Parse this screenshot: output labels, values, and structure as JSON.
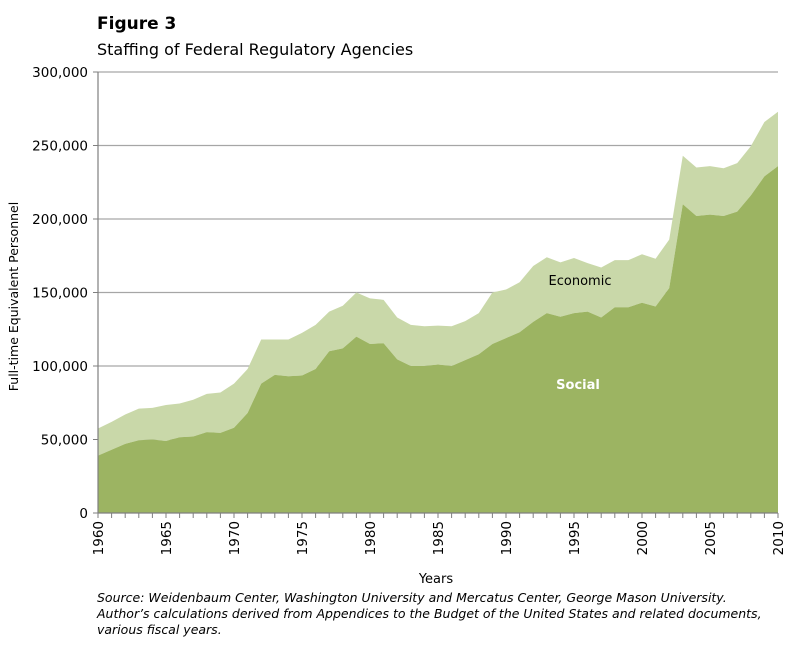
{
  "figure": {
    "label": "Figure 3",
    "title": "Staffing of Federal Regulatory Agencies"
  },
  "source_lines": [
    "Source: Weidenbaum Center, Washington University and Mercatus Center, George Mason University.",
    "Author’s calculations derived from Appendices to the Budget of the United States and related documents,",
    "various fiscal years."
  ],
  "colors": {
    "economic": "#c9d8a9",
    "social": "#9cb462",
    "gridline": "#a6a6a6",
    "axis": "#7f7f7f",
    "social_label": "#ffffff",
    "economic_label": "#000000"
  },
  "chart_data": {
    "type": "area",
    "stacked": true,
    "xlabel": "Years",
    "ylabel": "Full-time Equivalent Personnel",
    "xlim": [
      1960,
      2010
    ],
    "ylim": [
      0,
      300000
    ],
    "grid": "horizontal",
    "legend": "none",
    "x_ticks": [
      "1960",
      "1965",
      "1970",
      "1975",
      "1980",
      "1985",
      "1990",
      "1995",
      "2000",
      "2005",
      "2010"
    ],
    "y_ticks": [
      "0",
      "50,000",
      "100,000",
      "150,000",
      "200,000",
      "250,000",
      "300,000"
    ],
    "x": [
      1960,
      1961,
      1962,
      1963,
      1964,
      1965,
      1966,
      1967,
      1968,
      1969,
      1970,
      1971,
      1972,
      1973,
      1974,
      1975,
      1976,
      1977,
      1978,
      1979,
      1980,
      1981,
      1982,
      1983,
      1984,
      1985,
      1986,
      1987,
      1988,
      1989,
      1990,
      1991,
      1992,
      1993,
      1994,
      1995,
      1996,
      1997,
      1998,
      1999,
      2000,
      2001,
      2002,
      2003,
      2004,
      2005,
      2006,
      2007,
      2008,
      2009,
      2010
    ],
    "series": [
      {
        "name": "Social",
        "values": [
          39000,
          43000,
          47000,
          49500,
          50000,
          49000,
          51500,
          52000,
          55000,
          54500,
          58000,
          68000,
          88000,
          94000,
          93000,
          93500,
          98000,
          110000,
          112000,
          120000,
          115000,
          115500,
          104500,
          100000,
          100000,
          101000,
          100000,
          104000,
          108000,
          115000,
          119000,
          123000,
          130000,
          136000,
          133500,
          136000,
          137000,
          133000,
          140000,
          140000,
          143000,
          140500,
          153000,
          210000,
          202000,
          203000,
          202000,
          205000,
          216000,
          229000,
          236000
        ],
        "label": "Social"
      },
      {
        "name": "Economic",
        "values": [
          18500,
          19000,
          20000,
          21500,
          21500,
          24500,
          23000,
          25000,
          26000,
          27500,
          30000,
          30000,
          30000,
          24000,
          25000,
          29000,
          30000,
          27000,
          29000,
          30000,
          31000,
          29500,
          28500,
          28000,
          27000,
          26500,
          27000,
          26500,
          28000,
          35000,
          33000,
          34000,
          38000,
          38000,
          37000,
          37500,
          33000,
          34000,
          32000,
          32000,
          33000,
          32500,
          33000,
          33000,
          33000,
          33000,
          32500,
          33000,
          33500,
          37000,
          37000
        ],
        "label": "Economic"
      }
    ]
  }
}
